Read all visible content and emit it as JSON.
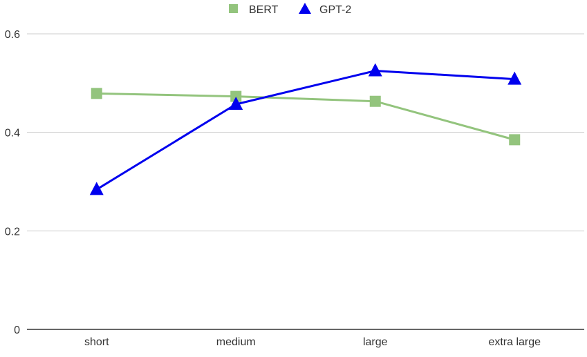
{
  "chart_data": {
    "type": "line",
    "title": "",
    "xlabel": "",
    "ylabel": "",
    "categories": [
      "short",
      "medium",
      "large",
      "extra large"
    ],
    "ylim": [
      0,
      0.6
    ],
    "yticks": [
      "0",
      "0.2",
      "0.4",
      "0.6"
    ],
    "ytick_values": [
      0,
      0.2,
      0.4,
      0.6
    ],
    "grid": true,
    "legend_position": "top-center",
    "series": [
      {
        "name": "BERT",
        "values": [
          0.479,
          0.473,
          0.463,
          0.385
        ],
        "color": "#93c47d",
        "marker": "square"
      },
      {
        "name": "GPT-2",
        "values": [
          0.284,
          0.457,
          0.525,
          0.508
        ],
        "color": "#0000ee",
        "marker": "triangle"
      }
    ]
  }
}
